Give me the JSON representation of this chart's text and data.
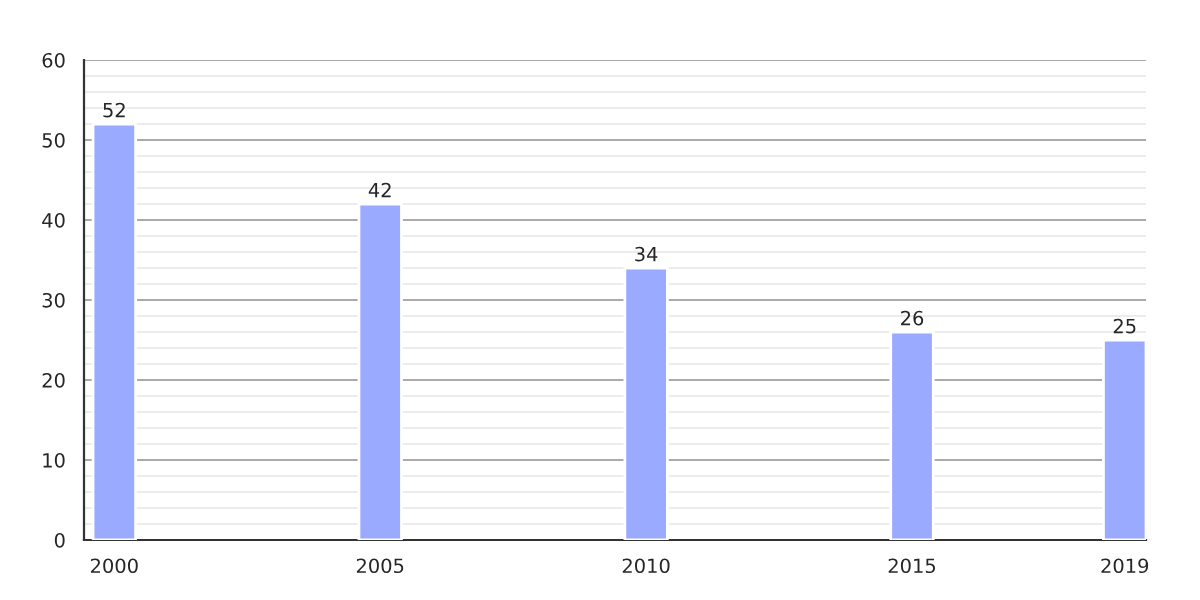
{
  "chart_data": {
    "type": "bar",
    "x": [
      2000,
      2005,
      2010,
      2015,
      2019
    ],
    "values": [
      52,
      42,
      34,
      26,
      25
    ],
    "color": "#99aaff",
    "xlim": [
      1999.43,
      2019.4
    ],
    "xticks": [
      2000,
      2005,
      2010,
      2015,
      2019
    ],
    "ylim": [
      0,
      60
    ],
    "yticks": [
      0,
      10,
      20,
      30,
      40,
      50,
      60
    ],
    "grid": "y",
    "data_labels": true
  }
}
